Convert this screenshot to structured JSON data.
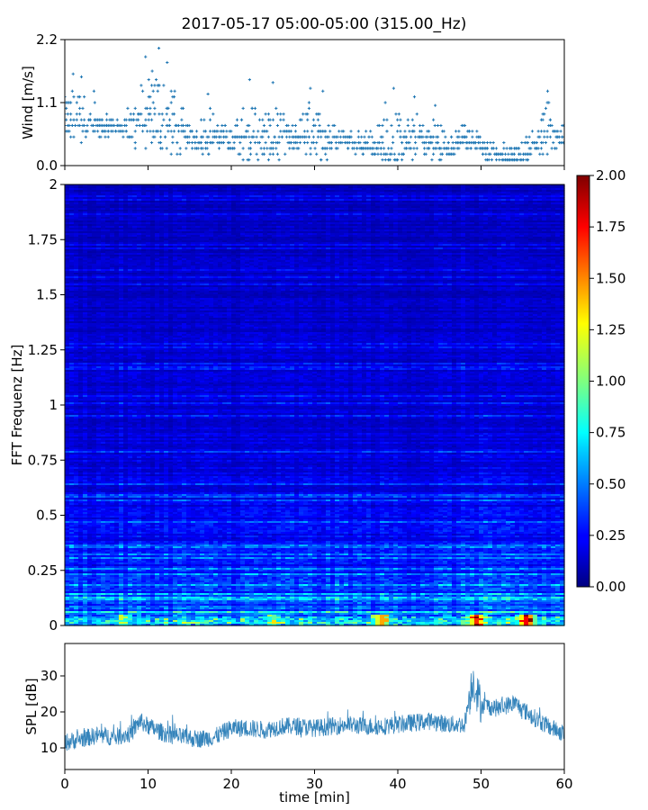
{
  "figure": {
    "title": "2017-05-17 05:00-05:00 (315.00_Hz)"
  },
  "chart_data": [
    {
      "id": "wind",
      "type": "scatter",
      "ylabel": "Wind [m/s]",
      "xlim": [
        0,
        60
      ],
      "ylim": [
        0.0,
        2.2
      ],
      "yticks": [
        0.0,
        1.1,
        2.2
      ],
      "ytick_labels": [
        "0.0",
        "1.1",
        "2.2"
      ],
      "color": "#1f77b4",
      "marker": "plus",
      "trend": {
        "x": [
          0,
          2,
          4,
          6,
          8,
          10,
          12,
          14,
          16,
          18,
          20,
          22,
          24,
          26,
          28,
          30,
          32,
          34,
          36,
          38,
          40,
          42,
          44,
          46,
          48,
          50,
          52,
          54,
          56,
          58,
          60
        ],
        "y": [
          0.75,
          0.7,
          0.6,
          0.65,
          0.6,
          0.7,
          0.65,
          0.45,
          0.45,
          0.45,
          0.4,
          0.45,
          0.35,
          0.4,
          0.4,
          0.45,
          0.4,
          0.4,
          0.35,
          0.25,
          0.25,
          0.4,
          0.35,
          0.25,
          0.45,
          0.3,
          0.15,
          0.1,
          0.3,
          0.5,
          0.45
        ]
      },
      "peaks": [
        {
          "x": 1.0,
          "y": 1.6
        },
        {
          "x": 2.0,
          "y": 1.55
        },
        {
          "x": 3.5,
          "y": 1.3
        },
        {
          "x": 9.7,
          "y": 1.9
        },
        {
          "x": 10.5,
          "y": 1.65
        },
        {
          "x": 11.3,
          "y": 2.05
        },
        {
          "x": 12.3,
          "y": 1.8
        },
        {
          "x": 13.2,
          "y": 1.3
        },
        {
          "x": 17.2,
          "y": 1.25
        },
        {
          "x": 22.2,
          "y": 1.5
        },
        {
          "x": 25.0,
          "y": 1.45
        },
        {
          "x": 29.5,
          "y": 1.35
        },
        {
          "x": 31.0,
          "y": 1.3
        },
        {
          "x": 38.5,
          "y": 1.1
        },
        {
          "x": 39.5,
          "y": 1.35
        },
        {
          "x": 42.0,
          "y": 1.2
        },
        {
          "x": 44.5,
          "y": 1.05
        },
        {
          "x": 58.0,
          "y": 1.3
        }
      ]
    },
    {
      "id": "spectrogram",
      "type": "heatmap",
      "ylabel": "FFT Frequenz [Hz]",
      "xlim": [
        0,
        60
      ],
      "ylim": [
        0,
        2
      ],
      "yticks": [
        0,
        0.25,
        0.5,
        0.75,
        1,
        1.25,
        1.5,
        1.75,
        2
      ],
      "ytick_labels": [
        "0",
        "0.25",
        "0.5",
        "0.75",
        "1",
        "1.25",
        "1.5",
        "1.75",
        "2"
      ],
      "colormap": "jet",
      "colorbar": {
        "vmin": 0.0,
        "vmax": 2.0,
        "ticks": [
          0.0,
          0.25,
          0.5,
          0.75,
          1.0,
          1.25,
          1.5,
          1.75,
          2.0
        ],
        "tick_labels": [
          "0.00",
          "0.25",
          "0.50",
          "0.75",
          "1.00",
          "1.25",
          "1.50",
          "1.75",
          "2.00"
        ]
      },
      "value_profile": {
        "freq": [
          0,
          0.05,
          0.15,
          0.3,
          0.6,
          1.0,
          1.5,
          2.0
        ],
        "typical_value": [
          0.7,
          0.45,
          0.35,
          0.28,
          0.22,
          0.18,
          0.15,
          0.14
        ]
      },
      "hotspots": [
        {
          "x": 7.0,
          "freq": 0.01,
          "value": 0.95
        },
        {
          "x": 25.0,
          "freq": 0.01,
          "value": 1.0
        },
        {
          "x": 38.0,
          "freq": 0.01,
          "value": 1.5
        },
        {
          "x": 49.5,
          "freq": 0.01,
          "value": 1.7
        },
        {
          "x": 55.5,
          "freq": 0.01,
          "value": 1.85
        }
      ]
    },
    {
      "id": "spl",
      "type": "line",
      "ylabel": "SPL [dB]",
      "xlabel": "time [min]",
      "xlim": [
        0,
        60
      ],
      "ylim": [
        4,
        39
      ],
      "yticks": [
        10,
        20,
        30
      ],
      "ytick_labels": [
        "10",
        "20",
        "30"
      ],
      "xticks": [
        0,
        10,
        20,
        30,
        40,
        50,
        60
      ],
      "xtick_labels": [
        "0",
        "10",
        "20",
        "30",
        "40",
        "50",
        "60"
      ],
      "color": "#1f77b4",
      "trend": {
        "x": [
          0,
          2,
          4,
          6,
          8,
          9,
          10,
          12,
          14,
          16,
          18,
          20,
          22,
          24,
          26,
          28,
          30,
          32,
          34,
          36,
          38,
          40,
          42,
          44,
          46,
          48,
          49,
          50,
          52,
          54,
          56,
          58,
          60
        ],
        "y": [
          11.5,
          12.5,
          13.5,
          13,
          14,
          17.5,
          16,
          14,
          13,
          12.5,
          13,
          15.5,
          15.5,
          15,
          16,
          16,
          15.5,
          16,
          16.5,
          16,
          16,
          16.5,
          17,
          17.5,
          16.5,
          16.5,
          29,
          22,
          21,
          22.5,
          19,
          16,
          14
        ]
      },
      "noise_band_db": 2.5
    }
  ]
}
